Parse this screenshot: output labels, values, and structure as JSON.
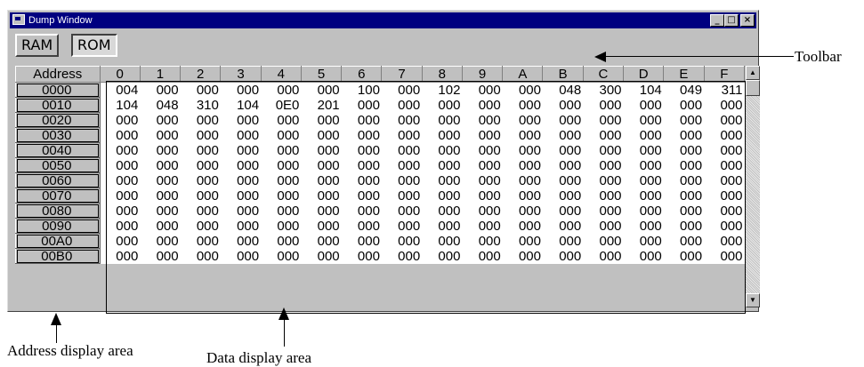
{
  "window": {
    "title": "Dump Window",
    "minimize": "_",
    "maximize": "□",
    "close": "×"
  },
  "toolbar": {
    "ram_label": "RAM",
    "rom_label": "ROM"
  },
  "grid": {
    "address_header": "Address",
    "columns": [
      "0",
      "1",
      "2",
      "3",
      "4",
      "5",
      "6",
      "7",
      "8",
      "9",
      "A",
      "B",
      "C",
      "D",
      "E",
      "F"
    ],
    "rows": [
      {
        "address": "0000",
        "values": [
          "004",
          "000",
          "000",
          "000",
          "000",
          "000",
          "100",
          "000",
          "102",
          "000",
          "000",
          "048",
          "300",
          "104",
          "049",
          "311"
        ]
      },
      {
        "address": "0010",
        "values": [
          "104",
          "048",
          "310",
          "104",
          "0E0",
          "201",
          "000",
          "000",
          "000",
          "000",
          "000",
          "000",
          "000",
          "000",
          "000",
          "000"
        ]
      },
      {
        "address": "0020",
        "values": [
          "000",
          "000",
          "000",
          "000",
          "000",
          "000",
          "000",
          "000",
          "000",
          "000",
          "000",
          "000",
          "000",
          "000",
          "000",
          "000"
        ]
      },
      {
        "address": "0030",
        "values": [
          "000",
          "000",
          "000",
          "000",
          "000",
          "000",
          "000",
          "000",
          "000",
          "000",
          "000",
          "000",
          "000",
          "000",
          "000",
          "000"
        ]
      },
      {
        "address": "0040",
        "values": [
          "000",
          "000",
          "000",
          "000",
          "000",
          "000",
          "000",
          "000",
          "000",
          "000",
          "000",
          "000",
          "000",
          "000",
          "000",
          "000"
        ]
      },
      {
        "address": "0050",
        "values": [
          "000",
          "000",
          "000",
          "000",
          "000",
          "000",
          "000",
          "000",
          "000",
          "000",
          "000",
          "000",
          "000",
          "000",
          "000",
          "000"
        ]
      },
      {
        "address": "0060",
        "values": [
          "000",
          "000",
          "000",
          "000",
          "000",
          "000",
          "000",
          "000",
          "000",
          "000",
          "000",
          "000",
          "000",
          "000",
          "000",
          "000"
        ]
      },
      {
        "address": "0070",
        "values": [
          "000",
          "000",
          "000",
          "000",
          "000",
          "000",
          "000",
          "000",
          "000",
          "000",
          "000",
          "000",
          "000",
          "000",
          "000",
          "000"
        ]
      },
      {
        "address": "0080",
        "values": [
          "000",
          "000",
          "000",
          "000",
          "000",
          "000",
          "000",
          "000",
          "000",
          "000",
          "000",
          "000",
          "000",
          "000",
          "000",
          "000"
        ]
      },
      {
        "address": "0090",
        "values": [
          "000",
          "000",
          "000",
          "000",
          "000",
          "000",
          "000",
          "000",
          "000",
          "000",
          "000",
          "000",
          "000",
          "000",
          "000",
          "000"
        ]
      },
      {
        "address": "00A0",
        "values": [
          "000",
          "000",
          "000",
          "000",
          "000",
          "000",
          "000",
          "000",
          "000",
          "000",
          "000",
          "000",
          "000",
          "000",
          "000",
          "000"
        ]
      },
      {
        "address": "00B0",
        "values": [
          "000",
          "000",
          "000",
          "000",
          "000",
          "000",
          "000",
          "000",
          "000",
          "000",
          "000",
          "000",
          "000",
          "000",
          "000",
          "000"
        ]
      }
    ]
  },
  "annotations": {
    "toolbar": "Toolbar",
    "address_area": "Address display area",
    "data_area": "Data display area"
  }
}
